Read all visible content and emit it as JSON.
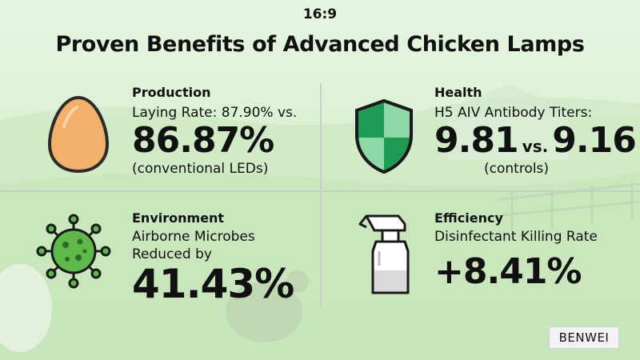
{
  "aspect_label": "16:9",
  "title": "Proven Benefits of Advanced Chicken Lamps",
  "cells": {
    "production": {
      "heading": "Production",
      "line1": "Laying Rate: 87.90% vs.",
      "big": "86.87%",
      "note": "(conventional LEDs)",
      "icon": "egg-icon"
    },
    "health": {
      "heading": "Health",
      "line1": "H5 AIV Antibody Titers:",
      "big_a": "9.81",
      "vs": "vs.",
      "big_b": "9.16",
      "note": "(controls)",
      "icon": "shield-icon"
    },
    "environment": {
      "heading": "Environment",
      "line1": "Airborne Microbes",
      "line2": "Reduced by",
      "big": "41.43%",
      "icon": "virus-icon"
    },
    "efficiency": {
      "heading": "Efficiency",
      "line1": "Disinfectant Killing Rate",
      "big": "+8.41%",
      "icon": "spray-bottle-icon"
    }
  },
  "brand": "BENWEI",
  "colors": {
    "background": "#dcf1d4",
    "egg": "#f2b06a",
    "shield_dark": "#1f9a52",
    "shield_light": "#8fd8a8",
    "virus": "#5fb94a"
  }
}
